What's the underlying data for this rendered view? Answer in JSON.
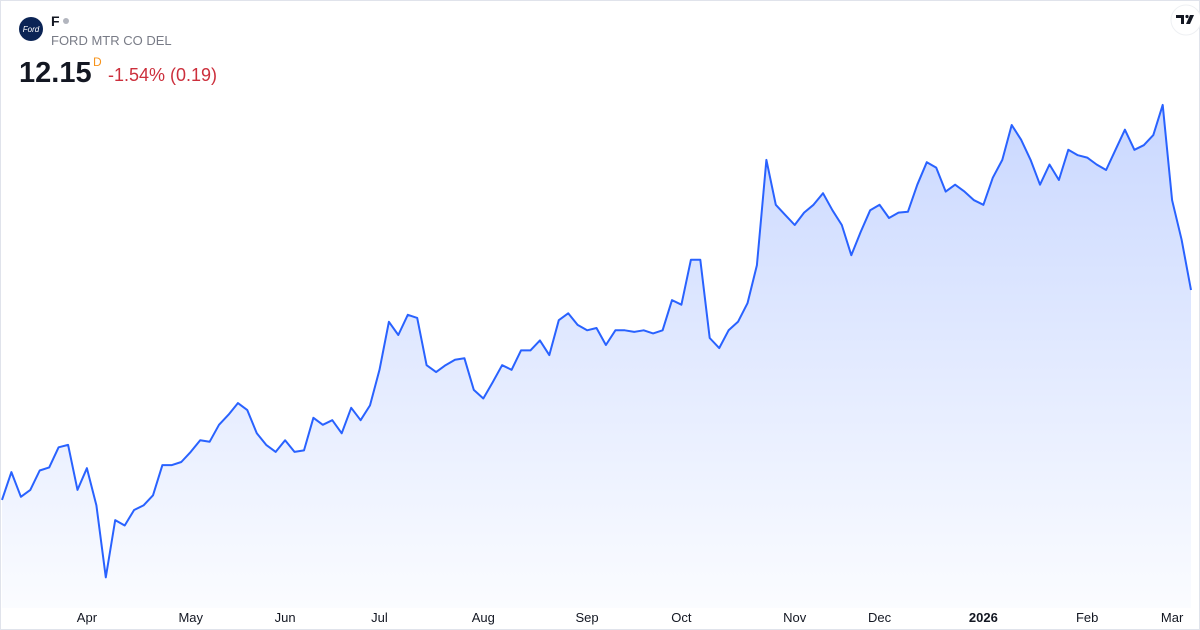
{
  "header": {
    "logo_text": "Ford",
    "ticker": "F",
    "company": "FORD MTR CO DEL",
    "price": 12.15,
    "interval": "D",
    "change": "-1.54% (0.19)"
  },
  "chart_data": {
    "type": "area",
    "color": "#2962ff",
    "ylim": [
      8.2,
      14.9
    ],
    "categories": [
      null,
      null,
      null,
      null,
      null,
      null,
      null,
      null,
      null,
      "Apr",
      null,
      null,
      null,
      null,
      null,
      null,
      null,
      null,
      null,
      null,
      "May",
      null,
      null,
      null,
      null,
      null,
      null,
      null,
      null,
      null,
      "Jun",
      null,
      null,
      null,
      null,
      null,
      null,
      null,
      null,
      null,
      "Jul",
      null,
      null,
      null,
      null,
      null,
      null,
      null,
      null,
      null,
      null,
      "Aug",
      null,
      null,
      null,
      null,
      null,
      null,
      null,
      null,
      null,
      null,
      "Sep",
      null,
      null,
      null,
      null,
      null,
      null,
      null,
      null,
      null,
      "Oct",
      null,
      null,
      null,
      null,
      null,
      null,
      null,
      null,
      null,
      null,
      null,
      "Nov",
      null,
      null,
      null,
      null,
      null,
      null,
      null,
      null,
      "Dec",
      null,
      null,
      null,
      null,
      null,
      null,
      null,
      null,
      null,
      null,
      "2026",
      null,
      null,
      null,
      null,
      null,
      null,
      null,
      null,
      null,
      null,
      "Feb",
      null,
      null,
      null,
      null,
      null,
      null,
      null,
      null,
      "Mar",
      null,
      null
    ],
    "values": [
      9.44,
      9.8,
      9.48,
      9.57,
      9.82,
      9.86,
      10.12,
      10.15,
      9.57,
      9.85,
      9.37,
      8.44,
      9.18,
      9.11,
      9.31,
      9.37,
      9.5,
      9.89,
      9.89,
      9.93,
      10.06,
      10.21,
      10.19,
      10.41,
      10.54,
      10.69,
      10.6,
      10.3,
      10.15,
      10.06,
      10.21,
      10.06,
      10.08,
      10.5,
      10.41,
      10.47,
      10.3,
      10.63,
      10.47,
      10.66,
      11.12,
      11.74,
      11.57,
      11.83,
      11.79,
      11.18,
      11.09,
      11.18,
      11.25,
      11.27,
      10.86,
      10.75,
      10.96,
      11.18,
      11.12,
      11.37,
      11.37,
      11.5,
      11.31,
      11.76,
      11.85,
      11.7,
      11.63,
      11.66,
      11.44,
      11.63,
      11.63,
      11.61,
      11.63,
      11.59,
      11.63,
      12.02,
      11.96,
      12.54,
      12.54,
      11.53,
      11.4,
      11.63,
      11.74,
      11.98,
      12.47,
      13.83,
      13.25,
      13.12,
      12.99,
      13.15,
      13.25,
      13.4,
      13.18,
      12.99,
      12.6,
      12.9,
      13.18,
      13.25,
      13.08,
      13.15,
      13.16,
      13.51,
      13.8,
      13.73,
      13.42,
      13.51,
      13.42,
      13.31,
      13.25,
      13.6,
      13.83,
      14.28,
      14.09,
      13.83,
      13.51,
      13.77,
      13.57,
      13.96,
      13.89,
      13.86,
      13.77,
      13.7,
      13.96,
      14.22,
      13.96,
      14.02,
      14.15,
      14.54,
      13.31,
      12.8,
      12.15
    ]
  }
}
